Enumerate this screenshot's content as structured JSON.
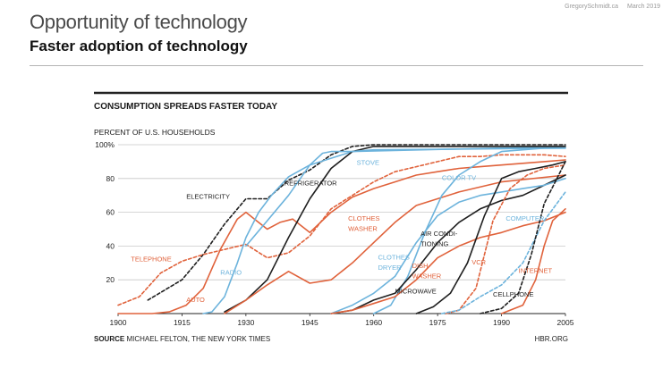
{
  "slide": {
    "meta_author": "GregorySchmidt.ca",
    "meta_date": "March 2019",
    "title": "Opportunity of technology",
    "subtitle": "Faster adoption of technology"
  },
  "colors": {
    "black": "#1f1f1f",
    "blue": "#6cb3dc",
    "orange": "#e0623b",
    "grid": "#c8c8c8",
    "source_rule": "#222222"
  },
  "chart_data": {
    "type": "line",
    "title": "CONSUMPTION SPREADS FASTER TODAY",
    "ylabel": "PERCENT OF U.S. HOUSEHOLDS",
    "xlim": [
      1900,
      2005
    ],
    "ylim": [
      0,
      100
    ],
    "x_ticks": [
      "1900",
      "1915",
      "1930",
      "1945",
      "1960",
      "1975",
      "1990",
      "2005"
    ],
    "y_ticks": [
      "100%",
      "80",
      "60",
      "40",
      "20"
    ],
    "source_prefix": "SOURCE",
    "source_text": "MICHAEL FELTON, THE NEW YORK TIMES",
    "brand": "HBR.ORG",
    "series": [
      {
        "name": "ELECTRICITY",
        "color": "black",
        "dash": true,
        "x": [
          1907,
          1915,
          1920,
          1925,
          1930,
          1935,
          1940,
          1945,
          1950,
          1955,
          1960,
          2005
        ],
        "y": [
          8,
          20,
          35,
          53,
          68,
          68,
          79,
          85,
          94,
          99,
          100,
          100
        ]
      },
      {
        "name": "TELEPHONE",
        "color": "orange",
        "dash": true,
        "x": [
          1900,
          1905,
          1910,
          1915,
          1920,
          1925,
          1930,
          1935,
          1940,
          1945,
          1950,
          1955,
          1960,
          1965,
          1970,
          1975,
          1980,
          1985,
          1990,
          1995,
          2000,
          2005
        ],
        "y": [
          5,
          10,
          24,
          31,
          35,
          38,
          41,
          33,
          36,
          46,
          62,
          70,
          78,
          84,
          87,
          90,
          93,
          93,
          94,
          94,
          94,
          93
        ]
      },
      {
        "name": "AUTO",
        "color": "orange",
        "dash": false,
        "x": [
          1900,
          1908,
          1912,
          1916,
          1920,
          1924,
          1928,
          1930,
          1932,
          1935,
          1938,
          1941,
          1945,
          1950,
          1955,
          1960,
          1965,
          1970,
          1975,
          1980,
          1985,
          1990,
          1995,
          2000,
          2005
        ],
        "y": [
          0,
          0,
          1,
          5,
          15,
          38,
          56,
          60,
          56,
          50,
          54,
          56,
          48,
          60,
          69,
          74,
          78,
          82,
          84,
          86,
          87,
          88,
          89,
          90,
          91
        ]
      },
      {
        "name": "RADIO",
        "color": "blue",
        "dash": false,
        "x": [
          1920,
          1922,
          1925,
          1928,
          1930,
          1933,
          1936,
          1940,
          1945,
          1950,
          1955,
          2005
        ],
        "y": [
          0,
          1,
          10,
          30,
          45,
          60,
          70,
          81,
          88,
          92,
          96,
          99
        ]
      },
      {
        "name": "REFRIGERATOR",
        "color": "black",
        "dash": false,
        "x": [
          1925,
          1930,
          1935,
          1940,
          1945,
          1950,
          1955,
          1960,
          2005
        ],
        "y": [
          1,
          8,
          20,
          45,
          68,
          86,
          96,
          99,
          99
        ]
      },
      {
        "name": "STOVE",
        "color": "blue",
        "dash": false,
        "x": [
          1930,
          1935,
          1940,
          1945,
          1948,
          1950,
          1955,
          1960,
          2005
        ],
        "y": [
          40,
          55,
          70,
          88,
          95,
          96,
          96,
          97,
          98
        ]
      },
      {
        "name": "CLOTHES WASHER",
        "color": "orange",
        "dash": false,
        "x": [
          1925,
          1930,
          1935,
          1940,
          1945,
          1950,
          1955,
          1960,
          1965,
          1970,
          1980,
          1990,
          2005
        ],
        "y": [
          0,
          8,
          17,
          25,
          18,
          20,
          30,
          42,
          54,
          64,
          72,
          78,
          82
        ]
      },
      {
        "name": "COLOR TV",
        "color": "blue",
        "dash": false,
        "x": [
          1960,
          1964,
          1968,
          1972,
          1976,
          1980,
          1985,
          1990,
          1995,
          2000,
          2005
        ],
        "y": [
          0,
          5,
          22,
          48,
          70,
          82,
          90,
          96,
          97,
          98,
          98
        ]
      },
      {
        "name": "AIR CONDITIONING",
        "color": "black",
        "dash": false,
        "x": [
          1950,
          1955,
          1960,
          1965,
          1970,
          1975,
          1980,
          1985,
          1990,
          1995,
          2000,
          2005
        ],
        "y": [
          0,
          2,
          8,
          12,
          26,
          42,
          54,
          62,
          67,
          70,
          76,
          82
        ]
      },
      {
        "name": "CLOTHES DRYER",
        "color": "blue",
        "dash": false,
        "x": [
          1950,
          1955,
          1960,
          1965,
          1970,
          1975,
          1980,
          1985,
          1990,
          1995,
          2000,
          2005
        ],
        "y": [
          0,
          5,
          12,
          22,
          42,
          58,
          66,
          70,
          72,
          74,
          76,
          80
        ]
      },
      {
        "name": "DISH-WASHER",
        "color": "orange",
        "dash": false,
        "x": [
          1950,
          1955,
          1960,
          1965,
          1970,
          1975,
          1980,
          1985,
          1990,
          1995,
          2000,
          2005
        ],
        "y": [
          0,
          2,
          6,
          10,
          20,
          33,
          40,
          45,
          48,
          52,
          55,
          60
        ]
      },
      {
        "name": "MICROWAVE",
        "color": "black",
        "dash": false,
        "x": [
          1970,
          1974,
          1978,
          1982,
          1986,
          1990,
          1994,
          1998,
          2002,
          2005
        ],
        "y": [
          0,
          4,
          12,
          30,
          58,
          80,
          84,
          86,
          88,
          90
        ]
      },
      {
        "name": "VCR",
        "color": "orange",
        "dash": true,
        "x": [
          1977,
          1980,
          1984,
          1988,
          1992,
          1996,
          2000,
          2005
        ],
        "y": [
          0,
          2,
          15,
          55,
          74,
          82,
          86,
          88
        ]
      },
      {
        "name": "COMPUTER",
        "color": "blue",
        "dash": true,
        "x": [
          1976,
          1980,
          1985,
          1990,
          1995,
          2000,
          2005
        ],
        "y": [
          0,
          2,
          10,
          17,
          30,
          55,
          72
        ]
      },
      {
        "name": "CELLPHONE",
        "color": "black",
        "dash": true,
        "x": [
          1985,
          1990,
          1994,
          1997,
          2000,
          2003,
          2005
        ],
        "y": [
          0,
          3,
          12,
          35,
          65,
          80,
          90
        ]
      },
      {
        "name": "INTERNET",
        "color": "orange",
        "dash": false,
        "x": [
          1990,
          1995,
          1998,
          2000,
          2002,
          2005
        ],
        "y": [
          0,
          5,
          20,
          40,
          55,
          62
        ]
      }
    ],
    "labels": [
      {
        "text": "ELECTRICITY",
        "color": "black",
        "x": 1916,
        "y": 68
      },
      {
        "text": "REFRIGERATOR",
        "color": "black",
        "x": 1939,
        "y": 76
      },
      {
        "text": "STOVE",
        "color": "blue",
        "x": 1956,
        "y": 88
      },
      {
        "text": "COLOR TV",
        "color": "blue",
        "x": 1976,
        "y": 79
      },
      {
        "text": "CLOTHES",
        "color": "orange",
        "x": 1954,
        "y": 55
      },
      {
        "text": "WASHER",
        "color": "orange",
        "x": 1954,
        "y": 49
      },
      {
        "text": "AIR CONDI-",
        "color": "black",
        "x": 1971,
        "y": 46
      },
      {
        "text": "TIONING",
        "color": "black",
        "x": 1971,
        "y": 40
      },
      {
        "text": "COMPUTER",
        "color": "blue",
        "x": 1991,
        "y": 55
      },
      {
        "text": "TELEPHONE",
        "color": "orange",
        "x": 1903,
        "y": 31
      },
      {
        "text": "RADIO",
        "color": "blue",
        "x": 1924,
        "y": 23
      },
      {
        "text": "CLOTHES",
        "color": "blue",
        "x": 1961,
        "y": 32
      },
      {
        "text": "DRYER",
        "color": "blue",
        "x": 1961,
        "y": 26
      },
      {
        "text": "DISH-",
        "color": "orange",
        "x": 1969,
        "y": 27
      },
      {
        "text": "WASHER",
        "color": "orange",
        "x": 1969,
        "y": 21
      },
      {
        "text": "VCR",
        "color": "orange",
        "x": 1983,
        "y": 29
      },
      {
        "text": "INTERNET",
        "color": "orange",
        "x": 1994,
        "y": 24
      },
      {
        "text": "AUTO",
        "color": "orange",
        "x": 1916,
        "y": 7
      },
      {
        "text": "MICROWAVE",
        "color": "black",
        "x": 1965,
        "y": 12
      },
      {
        "text": "CELLPHONE",
        "color": "black",
        "x": 1988,
        "y": 10
      }
    ]
  }
}
